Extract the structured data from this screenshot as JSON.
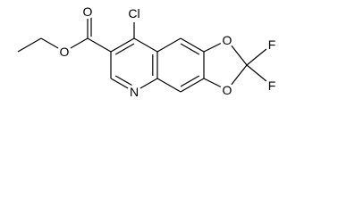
{
  "atoms": [
    {
      "label": "O"
    },
    {
      "label": "O"
    },
    {
      "label": "Cl"
    },
    {
      "label": "N"
    },
    {
      "label": "O"
    },
    {
      "label": "O"
    },
    {
      "label": "F"
    },
    {
      "label": "F"
    }
  ]
}
